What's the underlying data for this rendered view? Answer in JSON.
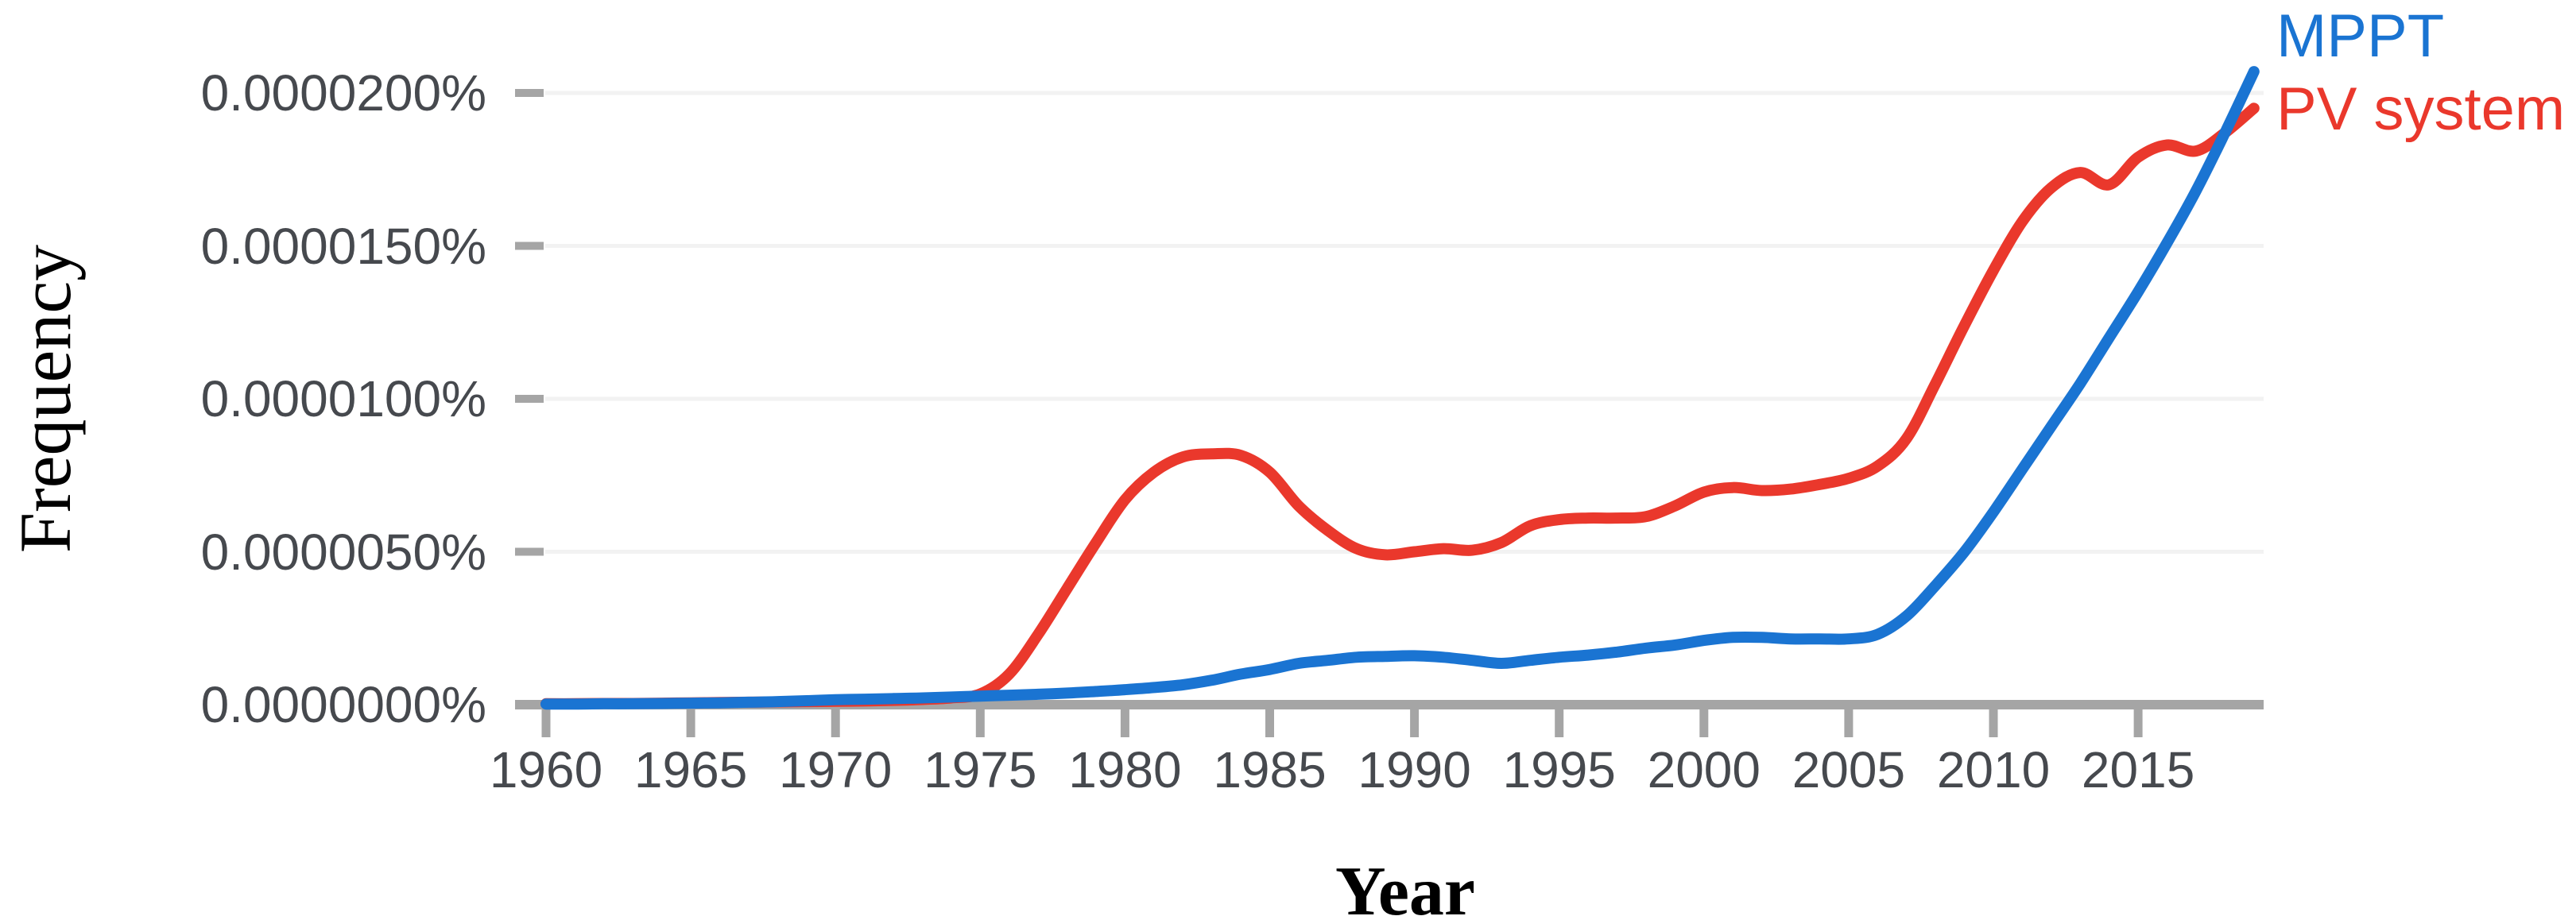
{
  "chart": {
    "y_axis_title": "Frequency",
    "x_axis_title": "Year",
    "background": "#ffffff",
    "axis_color": "#a5a5a5",
    "gridline_color": "#f2f2f2",
    "tick_label_color": "#46494e",
    "legend": [
      {
        "label": "MPPT",
        "color": "#1a74d2"
      },
      {
        "label": "PV system",
        "color": "#ea382c"
      }
    ],
    "y_tick_labels": [
      "0.0000000%",
      "0.0000050%",
      "0.0000100%",
      "0.0000150%",
      "0.0000200%"
    ],
    "x_tick_labels": [
      "1960",
      "1965",
      "1970",
      "1975",
      "1980",
      "1985",
      "1990",
      "1995",
      "2000",
      "2005",
      "2010",
      "2015"
    ]
  },
  "chart_data": {
    "type": "line",
    "title": "",
    "xlabel": "Year",
    "ylabel": "Frequency",
    "grid": "horizontal",
    "legend_position": "top-right",
    "value_unit": "percent x 1e-6",
    "xlim": [
      1960,
      2019.5
    ],
    "ylim": [
      0,
      21.5
    ],
    "x_ticks": [
      1960,
      1965,
      1970,
      1975,
      1980,
      1985,
      1990,
      1995,
      2000,
      2005,
      2010,
      2015
    ],
    "y_ticks": [
      0,
      5,
      10,
      15,
      20
    ],
    "x": [
      1960,
      1961,
      1962,
      1963,
      1964,
      1965,
      1966,
      1967,
      1968,
      1969,
      1970,
      1971,
      1972,
      1973,
      1974,
      1975,
      1976,
      1977,
      1978,
      1979,
      1980,
      1981,
      1982,
      1983,
      1984,
      1985,
      1986,
      1987,
      1988,
      1989,
      1990,
      1991,
      1992,
      1993,
      1994,
      1995,
      1996,
      1997,
      1998,
      1999,
      2000,
      2001,
      2002,
      2003,
      2004,
      2005,
      2006,
      2007,
      2008,
      2009,
      2010,
      2011,
      2012,
      2013,
      2014,
      2015,
      2016,
      2017,
      2018,
      2019
    ],
    "series": [
      {
        "name": "MPPT",
        "color": "#1a74d2",
        "values": [
          0.02,
          0.02,
          0.03,
          0.03,
          0.04,
          0.05,
          0.06,
          0.08,
          0.1,
          0.13,
          0.16,
          0.18,
          0.2,
          0.22,
          0.25,
          0.28,
          0.31,
          0.34,
          0.38,
          0.43,
          0.49,
          0.56,
          0.65,
          0.8,
          1.0,
          1.15,
          1.35,
          1.45,
          1.55,
          1.58,
          1.6,
          1.55,
          1.45,
          1.35,
          1.45,
          1.55,
          1.62,
          1.72,
          1.85,
          1.95,
          2.1,
          2.2,
          2.2,
          2.15,
          2.15,
          2.15,
          2.3,
          2.9,
          3.9,
          5.0,
          6.3,
          7.7,
          9.1,
          10.5,
          12.0,
          13.5,
          15.1,
          16.8,
          18.7,
          20.7
        ]
      },
      {
        "name": "PV system",
        "color": "#ea382c",
        "values": [
          0.03,
          0.03,
          0.04,
          0.04,
          0.05,
          0.06,
          0.07,
          0.08,
          0.09,
          0.1,
          0.11,
          0.12,
          0.14,
          0.17,
          0.22,
          0.35,
          1.0,
          2.3,
          3.8,
          5.3,
          6.7,
          7.6,
          8.1,
          8.2,
          8.15,
          7.6,
          6.5,
          5.7,
          5.1,
          4.9,
          5.0,
          5.1,
          5.05,
          5.3,
          5.85,
          6.05,
          6.1,
          6.1,
          6.15,
          6.5,
          6.95,
          7.1,
          7.0,
          7.05,
          7.2,
          7.4,
          7.8,
          8.7,
          10.5,
          12.4,
          14.2,
          15.8,
          16.9,
          17.4,
          17.0,
          17.9,
          18.3,
          18.1,
          18.7,
          19.5
        ]
      }
    ]
  }
}
